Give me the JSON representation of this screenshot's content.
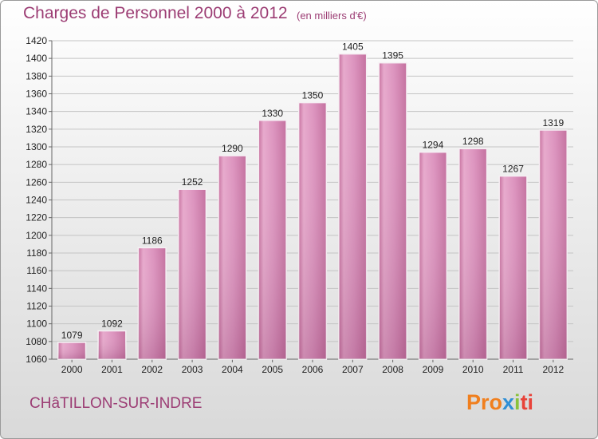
{
  "header": {
    "title": "Charges de Personnel 2000 à 2012",
    "unit": "(en milliers d'€)"
  },
  "footer": {
    "city": "CHâTILLON-SUR-INDRE",
    "logo": [
      "Pro",
      "x",
      "i",
      "ti"
    ]
  },
  "colors": {
    "bar": "#d98ab8",
    "text_accent": "#9c3d74"
  },
  "chart_data": {
    "type": "bar",
    "categories": [
      "2000",
      "2001",
      "2002",
      "2003",
      "2004",
      "2005",
      "2006",
      "2007",
      "2008",
      "2009",
      "2010",
      "2011",
      "2012"
    ],
    "values": [
      1079,
      1092,
      1186,
      1252,
      1290,
      1330,
      1350,
      1405,
      1395,
      1294,
      1298,
      1267,
      1319
    ],
    "title": "Charges de Personnel 2000 à 2012",
    "ylim": [
      1060,
      1420
    ],
    "yticks": [
      1060,
      1080,
      1100,
      1120,
      1140,
      1160,
      1180,
      1200,
      1220,
      1240,
      1260,
      1280,
      1300,
      1320,
      1340,
      1360,
      1380,
      1400,
      1420
    ],
    "grid": true
  }
}
